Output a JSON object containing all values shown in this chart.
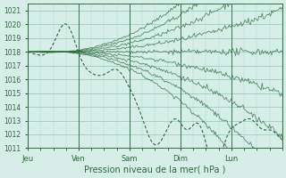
{
  "title": "",
  "xlabel": "Pression niveau de la mer( hPa )",
  "ylabel": "",
  "bg_color": "#d6eee8",
  "grid_color": "#7bbfb0",
  "line_color": "#2d6b3c",
  "ylim": [
    1011,
    1021.5
  ],
  "yticks": [
    1011,
    1012,
    1013,
    1014,
    1015,
    1016,
    1017,
    1018,
    1019,
    1020,
    1021
  ],
  "num_points": 120,
  "x_day_labels": [
    "Jeu",
    "Ven",
    "Sam",
    "Dim",
    "Lun"
  ],
  "x_day_positions": [
    0,
    24,
    48,
    72,
    96
  ]
}
